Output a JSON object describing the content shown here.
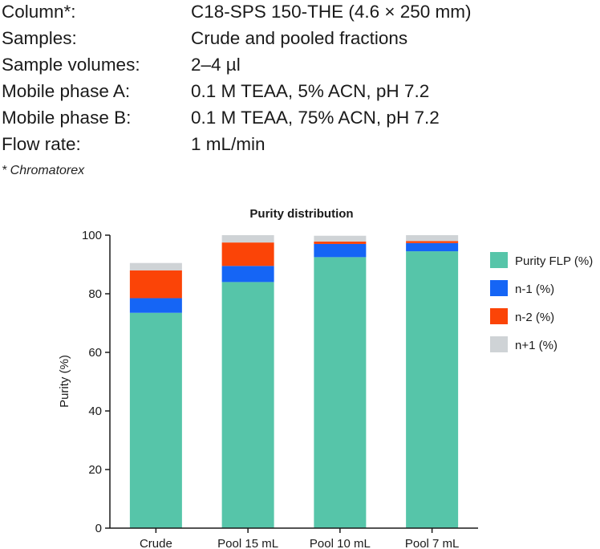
{
  "specs": [
    {
      "label": "Column*:",
      "value": "C18-SPS 150-THE (4.6 × 250 mm)"
    },
    {
      "label": "Samples:",
      "value": "Crude and pooled fractions"
    },
    {
      "label": "Sample volumes:",
      "value": "2–4 µl"
    },
    {
      "label": "Mobile phase A:",
      "value": "0.1 M TEAA, 5% ACN, pH 7.2"
    },
    {
      "label": "Mobile phase B:",
      "value": "0.1 M TEAA, 75% ACN, pH 7.2"
    },
    {
      "label": "Flow rate:",
      "value": "1 mL/min"
    }
  ],
  "footnote": "* Chromatorex",
  "chart_data": {
    "type": "bar",
    "stacked": true,
    "title": "Purity distribution",
    "xlabel": "",
    "ylabel": "Purity (%)",
    "ylim": [
      0,
      100
    ],
    "yticks": [
      0,
      20,
      40,
      60,
      80,
      100
    ],
    "grid": false,
    "legend_position": "right",
    "categories": [
      "Crude",
      "Pool 15 mL",
      "Pool 10 mL",
      "Pool 7 mL"
    ],
    "series": [
      {
        "name": "Purity FLP (%)",
        "color": "#56c5a9",
        "values": [
          73.5,
          84.0,
          92.5,
          94.5
        ]
      },
      {
        "name": "n-1 (%)",
        "color": "#1565f5",
        "values": [
          5.0,
          5.5,
          4.5,
          2.8
        ]
      },
      {
        "name": "n-2 (%)",
        "color": "#fb4407",
        "values": [
          9.5,
          8.0,
          0.8,
          0.7
        ]
      },
      {
        "name": "n+1 (%)",
        "color": "#cfd3d6",
        "values": [
          2.5,
          2.5,
          2.0,
          2.0
        ]
      }
    ]
  }
}
